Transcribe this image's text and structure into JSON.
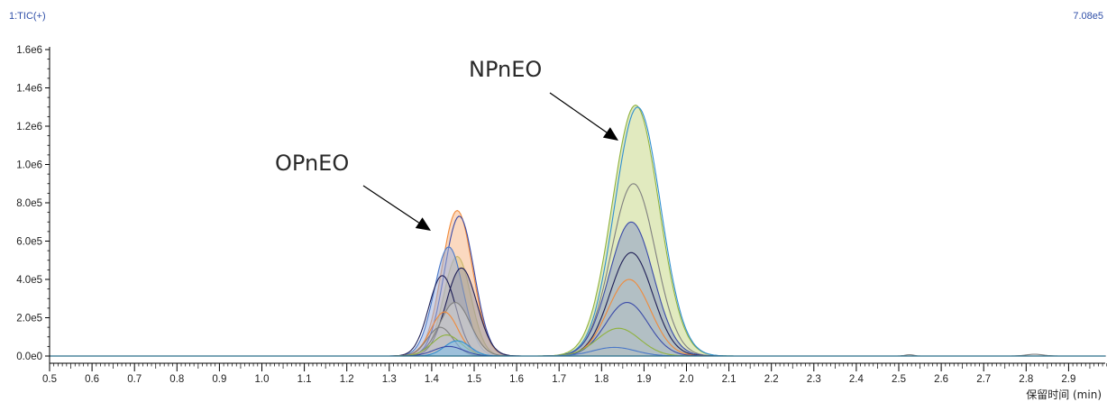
{
  "header": {
    "trace_label": "1:TIC(+)",
    "max_intensity": "7.08e5"
  },
  "chart_data": {
    "type": "area",
    "xlabel": "保留时间 (min)",
    "xlim": [
      0.5,
      2.99
    ],
    "ylim": [
      0,
      1650000
    ],
    "x_tick_labels": [
      "0.5",
      "0.6",
      "0.7",
      "0.8",
      "0.9",
      "1.0",
      "1.1",
      "1.2",
      "1.3",
      "1.4",
      "1.5",
      "1.6",
      "1.7",
      "1.8",
      "1.9",
      "2.0",
      "2.1",
      "2.2",
      "2.3",
      "2.4",
      "2.5",
      "2.6",
      "2.7",
      "2.8",
      "2.9"
    ],
    "x_ticks": [
      0.5,
      0.6,
      0.7,
      0.8,
      0.9,
      1.0,
      1.1,
      1.2,
      1.3,
      1.4,
      1.5,
      1.6,
      1.7,
      1.8,
      1.9,
      2.0,
      2.1,
      2.2,
      2.3,
      2.4,
      2.5,
      2.6,
      2.7,
      2.8,
      2.9
    ],
    "y_tick_labels": [
      "0.0e0",
      "2.0e5",
      "4.0e5",
      "6.0e5",
      "8.0e5",
      "1.0e6",
      "1.2e6",
      "1.4e6",
      "1.6e6"
    ],
    "y_ticks": [
      0,
      200000,
      400000,
      600000,
      800000,
      1000000,
      1200000,
      1400000,
      1600000
    ],
    "grid": false,
    "annotations": [
      {
        "text": "OPnEO",
        "x": 1.46,
        "y": 620000
      },
      {
        "text": "NPnEO",
        "x": 1.88,
        "y": 1160000
      }
    ],
    "series": [
      {
        "color": "#8fb23e",
        "fill": "#c9d98a",
        "peaks": [
          [
            1.88,
            1310000,
            0.055
          ],
          [
            1.46,
            520000,
            0.032
          ]
        ]
      },
      {
        "color": "#2f8fd0",
        "fill": "none",
        "peaks": [
          [
            1.885,
            1300000,
            0.054
          ]
        ]
      },
      {
        "color": "#7f7f7f",
        "fill": "none",
        "peaks": [
          [
            1.875,
            900000,
            0.052
          ]
        ]
      },
      {
        "color": "#3a4aa8",
        "fill": "#8d9ac8",
        "peaks": [
          [
            1.87,
            700000,
            0.052
          ]
        ]
      },
      {
        "color": "#1e1e55",
        "fill": "none",
        "peaks": [
          [
            1.87,
            540000,
            0.05
          ]
        ]
      },
      {
        "color": "#f08a3a",
        "fill": "none",
        "peaks": [
          [
            1.865,
            400000,
            0.05
          ]
        ]
      },
      {
        "color": "#3a4aa8",
        "fill": "none",
        "peaks": [
          [
            1.86,
            280000,
            0.05
          ]
        ]
      },
      {
        "color": "#8fb23e",
        "fill": "none",
        "peaks": [
          [
            1.84,
            145000,
            0.05
          ]
        ]
      },
      {
        "color": "#4a78c8",
        "fill": "none",
        "peaks": [
          [
            1.83,
            45000,
            0.05
          ]
        ]
      },
      {
        "color": "#f08a3a",
        "fill": "#f7b98c",
        "peaks": [
          [
            1.46,
            760000,
            0.036
          ]
        ]
      },
      {
        "color": "#3a4aa8",
        "fill": "none",
        "peaks": [
          [
            1.465,
            730000,
            0.035
          ]
        ]
      },
      {
        "color": "#4a78c8",
        "fill": "#9fb3de",
        "peaks": [
          [
            1.44,
            570000,
            0.034
          ]
        ]
      },
      {
        "color": "#1e1e55",
        "fill": "#9a9aa8",
        "peaks": [
          [
            1.47,
            460000,
            0.036
          ]
        ]
      },
      {
        "color": "#1e1e55",
        "fill": "none",
        "peaks": [
          [
            1.425,
            420000,
            0.032
          ]
        ]
      },
      {
        "color": "#7f7f7f",
        "fill": "#d6d6d6",
        "peaks": [
          [
            1.455,
            280000,
            0.036
          ]
        ]
      },
      {
        "color": "#f08a3a",
        "fill": "none",
        "peaks": [
          [
            1.43,
            230000,
            0.032
          ]
        ]
      },
      {
        "color": "#7f7f7f",
        "fill": "none",
        "peaks": [
          [
            1.42,
            150000,
            0.03
          ]
        ]
      },
      {
        "color": "#8fb23e",
        "fill": "none",
        "peaks": [
          [
            1.435,
            110000,
            0.034
          ]
        ]
      },
      {
        "color": "#2f8fd0",
        "fill": "#7fc0ec",
        "peaks": [
          [
            1.46,
            80000,
            0.03
          ]
        ]
      },
      {
        "color": "#3a4aa8",
        "fill": "none",
        "peaks": [
          [
            1.44,
            50000,
            0.035
          ]
        ]
      },
      {
        "color": "#7f7f7f",
        "fill": "none",
        "peaks": [
          [
            2.525,
            7000,
            0.01
          ],
          [
            2.82,
            9000,
            0.02
          ]
        ]
      }
    ]
  }
}
